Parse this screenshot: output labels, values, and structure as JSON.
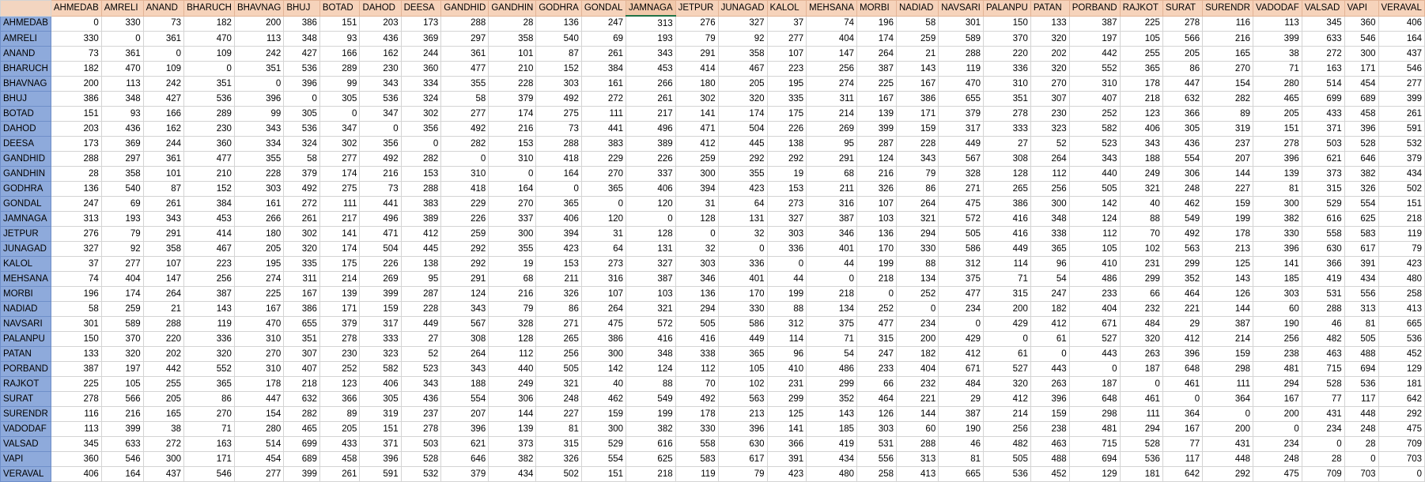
{
  "sheet": {
    "cities": [
      "AHMEDAB",
      "AMRELI",
      "ANAND",
      "BHARUCH",
      "BHAVNAG",
      "BHUJ",
      "BOTAD",
      "DAHOD",
      "DEESA",
      "GANDHID",
      "GANDHIN",
      "GODHRA",
      "GONDAL",
      "JAMNAGA",
      "JETPUR",
      "JUNAGAD",
      "KALOL",
      "MEHSANA",
      "MORBI",
      "NADIAD",
      "NAVSARI",
      "PALANPU",
      "PATAN",
      "PORBAND",
      "RAJKOT",
      "SURAT",
      "SURENDR",
      "VADODAF",
      "VALSAD",
      "VAPI",
      "VERAVAL"
    ],
    "active_column": "JAMNAGA",
    "rows": [
      [
        0,
        330,
        73,
        182,
        200,
        386,
        151,
        203,
        173,
        288,
        28,
        136,
        247,
        313,
        276,
        327,
        37,
        74,
        196,
        58,
        301,
        150,
        133,
        387,
        225,
        278,
        116,
        113,
        345,
        360,
        406
      ],
      [
        330,
        0,
        361,
        470,
        113,
        348,
        93,
        436,
        369,
        297,
        358,
        540,
        69,
        193,
        79,
        92,
        277,
        404,
        174,
        259,
        589,
        370,
        320,
        197,
        105,
        566,
        216,
        399,
        633,
        546,
        164
      ],
      [
        73,
        361,
        0,
        109,
        242,
        427,
        166,
        162,
        244,
        361,
        101,
        87,
        261,
        343,
        291,
        358,
        107,
        147,
        264,
        21,
        288,
        220,
        202,
        442,
        255,
        205,
        165,
        38,
        272,
        300,
        437
      ],
      [
        182,
        470,
        109,
        0,
        351,
        536,
        289,
        230,
        360,
        477,
        210,
        152,
        384,
        453,
        414,
        467,
        223,
        256,
        387,
        143,
        119,
        336,
        320,
        552,
        365,
        86,
        270,
        71,
        163,
        171,
        546
      ],
      [
        200,
        113,
        242,
        351,
        0,
        396,
        99,
        343,
        334,
        355,
        228,
        303,
        161,
        266,
        180,
        205,
        195,
        274,
        225,
        167,
        470,
        310,
        270,
        310,
        178,
        447,
        154,
        280,
        514,
        454,
        277
      ],
      [
        386,
        348,
        427,
        536,
        396,
        0,
        305,
        536,
        324,
        58,
        379,
        492,
        272,
        261,
        302,
        320,
        335,
        311,
        167,
        386,
        655,
        351,
        307,
        407,
        218,
        632,
        282,
        465,
        699,
        689,
        399
      ],
      [
        151,
        93,
        166,
        289,
        99,
        305,
        0,
        347,
        302,
        277,
        174,
        275,
        111,
        217,
        141,
        174,
        175,
        214,
        139,
        171,
        379,
        278,
        230,
        252,
        123,
        366,
        89,
        205,
        433,
        458,
        261
      ],
      [
        203,
        436,
        162,
        230,
        343,
        536,
        347,
        0,
        356,
        492,
        216,
        73,
        441,
        496,
        471,
        504,
        226,
        269,
        399,
        159,
        317,
        333,
        323,
        582,
        406,
        305,
        319,
        151,
        371,
        396,
        591
      ],
      [
        173,
        369,
        244,
        360,
        334,
        324,
        302,
        356,
        0,
        282,
        153,
        288,
        383,
        389,
        412,
        445,
        138,
        95,
        287,
        228,
        449,
        27,
        52,
        523,
        343,
        436,
        237,
        278,
        503,
        528,
        532
      ],
      [
        288,
        297,
        361,
        477,
        355,
        58,
        277,
        492,
        282,
        0,
        310,
        418,
        229,
        226,
        259,
        292,
        292,
        291,
        124,
        343,
        567,
        308,
        264,
        343,
        188,
        554,
        207,
        396,
        621,
        646,
        379
      ],
      [
        28,
        358,
        101,
        210,
        228,
        379,
        174,
        216,
        153,
        310,
        0,
        164,
        270,
        337,
        300,
        355,
        19,
        68,
        216,
        79,
        328,
        128,
        112,
        440,
        249,
        306,
        144,
        139,
        373,
        382,
        434
      ],
      [
        136,
        540,
        87,
        152,
        303,
        492,
        275,
        73,
        288,
        418,
        164,
        0,
        365,
        406,
        394,
        423,
        153,
        211,
        326,
        86,
        271,
        265,
        256,
        505,
        321,
        248,
        227,
        81,
        315,
        326,
        502
      ],
      [
        247,
        69,
        261,
        384,
        161,
        272,
        111,
        441,
        383,
        229,
        270,
        365,
        0,
        120,
        31,
        64,
        273,
        316,
        107,
        264,
        475,
        386,
        300,
        142,
        40,
        462,
        159,
        300,
        529,
        554,
        151
      ],
      [
        313,
        193,
        343,
        453,
        266,
        261,
        217,
        496,
        389,
        226,
        337,
        406,
        120,
        0,
        128,
        131,
        327,
        387,
        103,
        321,
        572,
        416,
        348,
        124,
        88,
        549,
        199,
        382,
        616,
        625,
        218
      ],
      [
        276,
        79,
        291,
        414,
        180,
        302,
        141,
        471,
        412,
        259,
        300,
        394,
        31,
        128,
        0,
        32,
        303,
        346,
        136,
        294,
        505,
        416,
        338,
        112,
        70,
        492,
        178,
        330,
        558,
        583,
        119
      ],
      [
        327,
        92,
        358,
        467,
        205,
        320,
        174,
        504,
        445,
        292,
        355,
        423,
        64,
        131,
        32,
        0,
        336,
        401,
        170,
        330,
        586,
        449,
        365,
        105,
        102,
        563,
        213,
        396,
        630,
        617,
        79
      ],
      [
        37,
        277,
        107,
        223,
        195,
        335,
        175,
        226,
        138,
        292,
        19,
        153,
        273,
        327,
        303,
        336,
        0,
        44,
        199,
        88,
        312,
        114,
        96,
        410,
        231,
        299,
        125,
        141,
        366,
        391,
        423
      ],
      [
        74,
        404,
        147,
        256,
        274,
        311,
        214,
        269,
        95,
        291,
        68,
        211,
        316,
        387,
        346,
        401,
        44,
        0,
        218,
        134,
        375,
        71,
        54,
        486,
        299,
        352,
        143,
        185,
        419,
        434,
        480
      ],
      [
        196,
        174,
        264,
        387,
        225,
        167,
        139,
        399,
        287,
        124,
        216,
        326,
        107,
        103,
        136,
        170,
        199,
        218,
        0,
        252,
        477,
        315,
        247,
        233,
        66,
        464,
        126,
        303,
        531,
        556,
        258
      ],
      [
        58,
        259,
        21,
        143,
        167,
        386,
        171,
        159,
        228,
        343,
        79,
        86,
        264,
        321,
        294,
        330,
        88,
        134,
        252,
        0,
        234,
        200,
        182,
        404,
        232,
        221,
        144,
        60,
        288,
        313,
        413
      ],
      [
        301,
        589,
        288,
        119,
        470,
        655,
        379,
        317,
        449,
        567,
        328,
        271,
        475,
        572,
        505,
        586,
        312,
        375,
        477,
        234,
        0,
        429,
        412,
        671,
        484,
        29,
        387,
        190,
        46,
        81,
        665
      ],
      [
        150,
        370,
        220,
        336,
        310,
        351,
        278,
        333,
        27,
        308,
        128,
        265,
        386,
        416,
        416,
        449,
        114,
        71,
        315,
        200,
        429,
        0,
        61,
        527,
        320,
        412,
        214,
        256,
        482,
        505,
        536
      ],
      [
        133,
        320,
        202,
        320,
        270,
        307,
        230,
        323,
        52,
        264,
        112,
        256,
        300,
        348,
        338,
        365,
        96,
        54,
        247,
        182,
        412,
        61,
        0,
        443,
        263,
        396,
        159,
        238,
        463,
        488,
        452
      ],
      [
        387,
        197,
        442,
        552,
        310,
        407,
        252,
        582,
        523,
        343,
        440,
        505,
        142,
        124,
        112,
        105,
        410,
        486,
        233,
        404,
        671,
        527,
        443,
        0,
        187,
        648,
        298,
        481,
        715,
        694,
        129
      ],
      [
        225,
        105,
        255,
        365,
        178,
        218,
        123,
        406,
        343,
        188,
        249,
        321,
        40,
        88,
        70,
        102,
        231,
        299,
        66,
        232,
        484,
        320,
        263,
        187,
        0,
        461,
        111,
        294,
        528,
        536,
        181
      ],
      [
        278,
        566,
        205,
        86,
        447,
        632,
        366,
        305,
        436,
        554,
        306,
        248,
        462,
        549,
        492,
        563,
        299,
        352,
        464,
        221,
        29,
        412,
        396,
        648,
        461,
        0,
        364,
        167,
        77,
        117,
        642
      ],
      [
        116,
        216,
        165,
        270,
        154,
        282,
        89,
        319,
        237,
        207,
        144,
        227,
        159,
        199,
        178,
        213,
        125,
        143,
        126,
        144,
        387,
        214,
        159,
        298,
        111,
        364,
        0,
        200,
        431,
        448,
        292
      ],
      [
        113,
        399,
        38,
        71,
        280,
        465,
        205,
        151,
        278,
        396,
        139,
        81,
        300,
        382,
        330,
        396,
        141,
        185,
        303,
        60,
        190,
        256,
        238,
        481,
        294,
        167,
        200,
        0,
        234,
        248,
        475
      ],
      [
        345,
        633,
        272,
        163,
        514,
        699,
        433,
        371,
        503,
        621,
        373,
        315,
        529,
        616,
        558,
        630,
        366,
        419,
        531,
        288,
        46,
        482,
        463,
        715,
        528,
        77,
        431,
        234,
        0,
        28,
        709
      ],
      [
        360,
        546,
        300,
        171,
        454,
        689,
        458,
        396,
        528,
        646,
        382,
        326,
        554,
        625,
        583,
        617,
        391,
        434,
        556,
        313,
        81,
        505,
        488,
        694,
        536,
        117,
        448,
        248,
        28,
        0,
        703
      ],
      [
        406,
        164,
        437,
        546,
        277,
        399,
        261,
        591,
        532,
        379,
        434,
        502,
        151,
        218,
        119,
        79,
        423,
        480,
        258,
        413,
        665,
        536,
        452,
        129,
        181,
        642,
        292,
        475,
        709,
        703,
        0
      ]
    ]
  }
}
